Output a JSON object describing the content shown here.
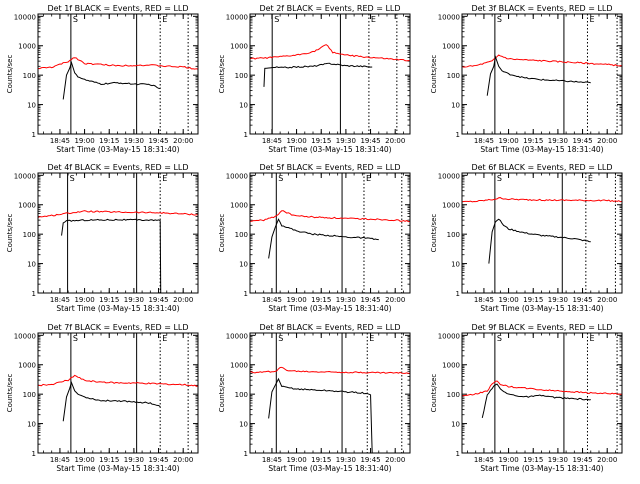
{
  "chart_data": [
    {
      "type": "line",
      "title": "Det 1f BLACK = Events, RED = LLD",
      "xlabel": "Start Time (03-May-15 18:31:40)",
      "ylabel": "Counts/sec",
      "x_ticks": [
        "18:45",
        "19:00",
        "19:15",
        "19:30",
        "19:45",
        "20:00"
      ],
      "y_ticks": [
        "1",
        "10",
        "100",
        "1000",
        "10000"
      ],
      "xlim": [
        "18:31:40",
        "20:09"
      ],
      "ylim": [
        1,
        12000
      ],
      "yscale": "log",
      "vlines_solid": [
        "18:51:40",
        "19:31:40"
      ],
      "vlines_dotted": [
        "19:46",
        "20:03"
      ],
      "corner_labels": [
        "S",
        "E"
      ],
      "series": [
        {
          "color": "#ff0000",
          "x": [
            "18:31:40",
            "18:40",
            "18:50",
            "18:54",
            "19:00",
            "19:10",
            "19:20",
            "19:30",
            "19:40",
            "19:50",
            "20:00",
            "20:09"
          ],
          "values": [
            170,
            185,
            290,
            410,
            250,
            230,
            210,
            215,
            220,
            200,
            190,
            160
          ]
        },
        {
          "color": "#000000",
          "x": [
            "18:47",
            "18:49",
            "18:51",
            "18:52",
            "18:54",
            "18:56",
            "19:00",
            "19:10",
            "19:20",
            "19:30",
            "19:40",
            "19:46"
          ],
          "values": [
            15,
            100,
            175,
            270,
            120,
            90,
            70,
            50,
            55,
            50,
            48,
            35
          ]
        }
      ]
    },
    {
      "type": "line",
      "title": "Det 2f BLACK = Events, RED = LLD",
      "xlabel": "Start Time (03-May-15 18:31:40)",
      "ylabel": "Counts/sec",
      "x_ticks": [
        "18:45",
        "19:00",
        "19:15",
        "19:30",
        "19:45",
        "20:00"
      ],
      "y_ticks": [
        "1",
        "10",
        "100",
        "1000",
        "10000"
      ],
      "xlim": [
        "18:31:40",
        "20:09"
      ],
      "ylim": [
        1,
        12000
      ],
      "yscale": "log",
      "vlines_solid": [
        "18:45:10",
        "19:26:40"
      ],
      "vlines_dotted": [
        "19:44",
        "20:01"
      ],
      "corner_labels": [
        "S",
        "E"
      ],
      "series": [
        {
          "color": "#ff0000",
          "x": [
            "18:31:40",
            "18:40",
            "18:50",
            "19:00",
            "19:10",
            "19:15",
            "19:18",
            "19:22",
            "19:30",
            "19:40",
            "19:50",
            "20:00",
            "20:09"
          ],
          "values": [
            360,
            380,
            420,
            480,
            620,
            850,
            1100,
            600,
            480,
            420,
            380,
            340,
            310
          ]
        },
        {
          "color": "#000000",
          "x": [
            "18:40:10",
            "18:40:40",
            "18:43",
            "18:45",
            "18:47",
            "18:52",
            "19:00",
            "19:10",
            "19:20",
            "19:30",
            "19:40",
            "19:46"
          ],
          "values": [
            40,
            170,
            175,
            180,
            185,
            180,
            190,
            200,
            250,
            210,
            200,
            190
          ]
        }
      ]
    },
    {
      "type": "line",
      "title": "Det 3f BLACK = Events, RED = LLD",
      "xlabel": "Start Time (03-May-15 18:31:40)",
      "ylabel": "Counts/sec",
      "x_ticks": [
        "18:45",
        "19:00",
        "19:15",
        "19:30",
        "19:45",
        "20:00"
      ],
      "y_ticks": [
        "1",
        "10",
        "100",
        "1000",
        "10000"
      ],
      "xlim": [
        "18:31:40",
        "20:09"
      ],
      "ylim": [
        1,
        12000
      ],
      "yscale": "log",
      "vlines_solid": [
        "18:51:40",
        "19:33:40"
      ],
      "vlines_dotted": [
        "19:48",
        "20:06"
      ],
      "corner_labels": [
        "S",
        "E"
      ],
      "series": [
        {
          "color": "#ff0000",
          "x": [
            "18:31:40",
            "18:40",
            "18:50",
            "18:54",
            "19:00",
            "19:10",
            "19:20",
            "19:30",
            "19:40",
            "19:50",
            "20:00",
            "20:09"
          ],
          "values": [
            190,
            210,
            300,
            480,
            360,
            330,
            310,
            290,
            270,
            250,
            230,
            210
          ]
        },
        {
          "color": "#000000",
          "x": [
            "18:47",
            "18:49",
            "18:51",
            "18:52",
            "18:54",
            "18:56",
            "19:00",
            "19:10",
            "19:20",
            "19:30",
            "19:40",
            "19:50"
          ],
          "values": [
            20,
            110,
            200,
            420,
            200,
            140,
            110,
            80,
            70,
            65,
            60,
            55
          ]
        }
      ]
    },
    {
      "type": "line",
      "title": "Det 4f BLACK = Events, RED = LLD",
      "xlabel": "Start Time (03-May-15 18:31:40)",
      "ylabel": "Counts/sec",
      "x_ticks": [
        "18:45",
        "19:00",
        "19:15",
        "19:30",
        "19:45",
        "20:00"
      ],
      "y_ticks": [
        "1",
        "10",
        "100",
        "1000",
        "10000"
      ],
      "xlim": [
        "18:31:40",
        "20:09"
      ],
      "ylim": [
        1,
        12000
      ],
      "yscale": "log",
      "vlines_solid": [
        "18:49:40",
        "19:31:40"
      ],
      "vlines_dotted": [
        "19:46"
      ],
      "corner_labels": [
        "S",
        "E"
      ],
      "series": [
        {
          "color": "#ff0000",
          "x": [
            "18:31:40",
            "18:40",
            "18:50",
            "19:00",
            "19:10",
            "19:20",
            "19:30",
            "19:40",
            "19:50",
            "20:00",
            "20:09"
          ],
          "values": [
            380,
            430,
            520,
            600,
            580,
            560,
            550,
            540,
            520,
            490,
            460
          ]
        },
        {
          "color": "#000000",
          "x": [
            "18:46",
            "18:47",
            "18:49",
            "19:00",
            "19:10",
            "19:20",
            "19:30",
            "19:40",
            "19:46",
            "19:46:20"
          ],
          "values": [
            90,
            240,
            280,
            300,
            305,
            310,
            305,
            300,
            290,
            1
          ]
        }
      ]
    },
    {
      "type": "line",
      "title": "Det 5f BLACK = Events, RED = LLD",
      "xlabel": "Start Time (03-May-15 18:31:40)",
      "ylabel": "Counts/sec",
      "x_ticks": [
        "18:45",
        "19:00",
        "19:15",
        "19:30",
        "19:45",
        "20:00"
      ],
      "y_ticks": [
        "1",
        "10",
        "100",
        "1000",
        "10000"
      ],
      "xlim": [
        "18:31:40",
        "20:09"
      ],
      "ylim": [
        1,
        12000
      ],
      "yscale": "log",
      "vlines_solid": [
        "18:47:40",
        "19:27:40"
      ],
      "vlines_dotted": [
        "19:41",
        "20:04"
      ],
      "corner_labels": [
        "S",
        "E"
      ],
      "series": [
        {
          "color": "#ff0000",
          "x": [
            "18:31:40",
            "18:40",
            "18:48",
            "18:51",
            "18:56",
            "19:00",
            "19:10",
            "19:20",
            "19:30",
            "19:40",
            "19:50",
            "20:00",
            "20:09"
          ],
          "values": [
            280,
            300,
            420,
            650,
            480,
            420,
            380,
            360,
            340,
            330,
            320,
            300,
            270
          ]
        },
        {
          "color": "#000000",
          "x": [
            "18:43",
            "18:45",
            "18:47",
            "18:49",
            "18:51",
            "19:00",
            "19:10",
            "19:20",
            "19:30",
            "19:40",
            "19:50"
          ],
          "values": [
            15,
            80,
            170,
            320,
            200,
            130,
            100,
            90,
            80,
            75,
            65
          ]
        }
      ]
    },
    {
      "type": "line",
      "title": "Det 6f BLACK = Events, RED = LLD",
      "xlabel": "Start Time (03-May-15 18:31:40)",
      "ylabel": "Counts/sec",
      "x_ticks": [
        "18:45",
        "19:00",
        "19:15",
        "19:30",
        "19:45",
        "20:00"
      ],
      "y_ticks": [
        "1",
        "10",
        "100",
        "1000",
        "10000"
      ],
      "xlim": [
        "18:31:40",
        "20:09"
      ],
      "ylim": [
        1,
        12000
      ],
      "yscale": "log",
      "vlines_solid": [
        "18:51:40",
        "19:32:40"
      ],
      "vlines_dotted": [
        "19:47",
        "20:05"
      ],
      "corner_labels": [
        "S",
        "E"
      ],
      "series": [
        {
          "color": "#ff0000",
          "x": [
            "18:31:40",
            "18:40",
            "18:50",
            "18:55",
            "19:00",
            "19:10",
            "19:20",
            "19:30",
            "19:40",
            "19:50",
            "20:00",
            "20:09"
          ],
          "values": [
            1250,
            1300,
            1500,
            1700,
            1550,
            1480,
            1450,
            1430,
            1420,
            1400,
            1380,
            1300
          ]
        },
        {
          "color": "#000000",
          "x": [
            "18:48",
            "18:50",
            "18:52",
            "18:54",
            "18:57",
            "19:00",
            "19:10",
            "19:20",
            "19:30",
            "19:40",
            "19:50"
          ],
          "values": [
            10,
            120,
            260,
            330,
            200,
            150,
            110,
            90,
            80,
            70,
            55
          ]
        }
      ]
    },
    {
      "type": "line",
      "title": "Det 7f BLACK = Events, RED = LLD",
      "xlabel": "Start Time (03-May-15 18:31:40)",
      "ylabel": "Counts/sec",
      "x_ticks": [
        "18:45",
        "19:00",
        "19:15",
        "19:30",
        "19:45",
        "20:00"
      ],
      "y_ticks": [
        "1",
        "10",
        "100",
        "1000",
        "10000"
      ],
      "xlim": [
        "18:31:40",
        "20:09"
      ],
      "ylim": [
        1,
        12000
      ],
      "yscale": "log",
      "vlines_solid": [
        "18:51:40",
        "19:31:40"
      ],
      "vlines_dotted": [
        "19:46",
        "20:03"
      ],
      "corner_labels": [
        "S",
        "E"
      ],
      "series": [
        {
          "color": "#ff0000",
          "x": [
            "18:31:40",
            "18:40",
            "18:50",
            "18:54",
            "19:00",
            "19:10",
            "19:20",
            "19:30",
            "19:40",
            "19:50",
            "20:00",
            "20:09"
          ],
          "values": [
            200,
            215,
            300,
            430,
            290,
            260,
            240,
            240,
            230,
            220,
            210,
            190
          ]
        },
        {
          "color": "#000000",
          "x": [
            "18:47",
            "18:49",
            "18:51",
            "18:52",
            "18:54",
            "18:56",
            "19:00",
            "19:10",
            "19:20",
            "19:30",
            "19:40",
            "19:46"
          ],
          "values": [
            12,
            80,
            160,
            250,
            130,
            100,
            80,
            60,
            60,
            55,
            50,
            38
          ]
        }
      ]
    },
    {
      "type": "line",
      "title": "Det 8f BLACK = Events, RED = LLD",
      "xlabel": "Start Time (03-May-15 18:31:40)",
      "ylabel": "Counts/sec",
      "x_ticks": [
        "18:45",
        "19:00",
        "19:15",
        "19:30",
        "19:45",
        "20:00"
      ],
      "y_ticks": [
        "1",
        "10",
        "100",
        "1000",
        "10000"
      ],
      "xlim": [
        "18:31:40",
        "20:09"
      ],
      "ylim": [
        1,
        12000
      ],
      "yscale": "log",
      "vlines_solid": [
        "18:47:40",
        "19:27:40"
      ],
      "vlines_dotted": [
        "19:43",
        "20:04"
      ],
      "corner_labels": [
        "S",
        "E"
      ],
      "series": [
        {
          "color": "#ff0000",
          "x": [
            "18:31:40",
            "18:40",
            "18:48",
            "18:50",
            "18:54",
            "19:00",
            "19:10",
            "19:20",
            "19:30",
            "19:40",
            "19:50",
            "20:00",
            "20:09"
          ],
          "values": [
            550,
            560,
            620,
            850,
            650,
            600,
            580,
            570,
            560,
            550,
            540,
            530,
            520
          ]
        },
        {
          "color": "#000000",
          "x": [
            "18:43",
            "18:45",
            "18:47",
            "18:49",
            "18:51",
            "19:00",
            "19:10",
            "19:20",
            "19:30",
            "19:40",
            "19:45",
            "19:46"
          ],
          "values": [
            15,
            120,
            200,
            330,
            180,
            150,
            140,
            130,
            120,
            110,
            95,
            1
          ]
        }
      ]
    },
    {
      "type": "line",
      "title": "Det 9f BLACK = Events, RED = LLD",
      "xlabel": "Start Time (03-May-15 18:31:40)",
      "ylabel": "Counts/sec",
      "x_ticks": [
        "18:45",
        "19:00",
        "19:15",
        "19:30",
        "19:45",
        "20:00"
      ],
      "y_ticks": [
        "1",
        "10",
        "100",
        "1000",
        "10000"
      ],
      "xlim": [
        "18:31:40",
        "20:09"
      ],
      "ylim": [
        1,
        12000
      ],
      "yscale": "log",
      "vlines_solid": [
        "18:51:40",
        "19:33:40"
      ],
      "vlines_dotted": [
        "19:48",
        "20:06"
      ],
      "corner_labels": [
        "S",
        "E"
      ],
      "series": [
        {
          "color": "#ff0000",
          "x": [
            "18:31:40",
            "18:40",
            "18:47",
            "18:50",
            "18:53",
            "18:55",
            "19:00",
            "19:10",
            "19:20",
            "19:30",
            "19:40",
            "19:50",
            "20:00",
            "20:09"
          ],
          "values": [
            90,
            100,
            130,
            220,
            280,
            220,
            180,
            160,
            140,
            130,
            120,
            110,
            105,
            100
          ]
        },
        {
          "color": "#000000",
          "x": [
            "18:44",
            "18:47",
            "18:50",
            "18:53",
            "18:56",
            "19:00",
            "19:10",
            "19:20",
            "19:30",
            "19:40",
            "19:50"
          ],
          "values": [
            15,
            90,
            160,
            230,
            130,
            100,
            80,
            90,
            75,
            70,
            65
          ]
        }
      ]
    }
  ]
}
